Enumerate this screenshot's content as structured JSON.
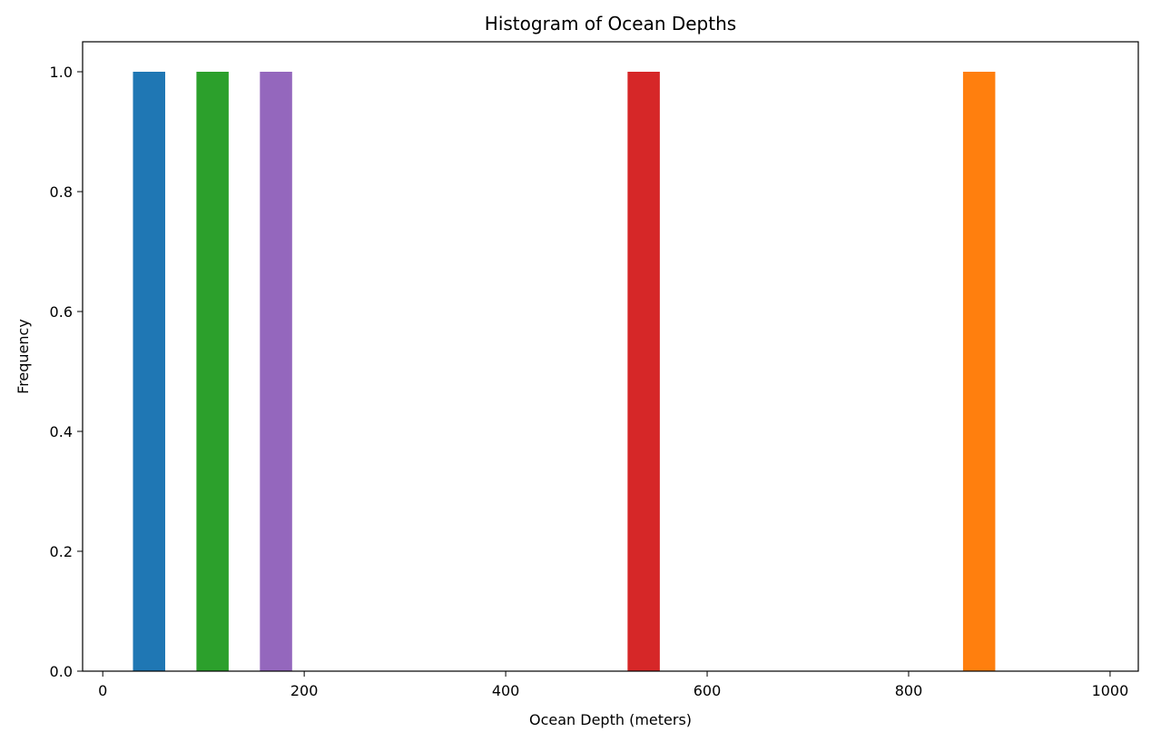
{
  "chart_data": {
    "type": "bar",
    "title": "Histogram of Ocean Depths",
    "xlabel": "Ocean Depth (meters)",
    "ylabel": "Frequency",
    "xlim": [
      -20,
      1028
    ],
    "ylim": [
      0,
      1.05
    ],
    "x_ticks": [
      0,
      200,
      400,
      600,
      800,
      1000
    ],
    "y_ticks": [
      0.0,
      0.2,
      0.4,
      0.6,
      0.8,
      1.0
    ],
    "x_tick_labels": [
      "0",
      "200",
      "400",
      "600",
      "800",
      "1000"
    ],
    "y_tick_labels": [
      "0.0",
      "0.2",
      "0.4",
      "0.6",
      "0.8",
      "1.0"
    ],
    "grid": false,
    "bins": [
      {
        "start": 30,
        "end": 62,
        "count": 1,
        "color": "#1f77b4"
      },
      {
        "start": 93,
        "end": 125,
        "count": 1,
        "color": "#2ca02c"
      },
      {
        "start": 156,
        "end": 188,
        "count": 1,
        "color": "#9467bd"
      },
      {
        "start": 521,
        "end": 553,
        "count": 1,
        "color": "#d62728"
      },
      {
        "start": 854,
        "end": 886,
        "count": 1,
        "color": "#ff7f0e"
      }
    ]
  }
}
